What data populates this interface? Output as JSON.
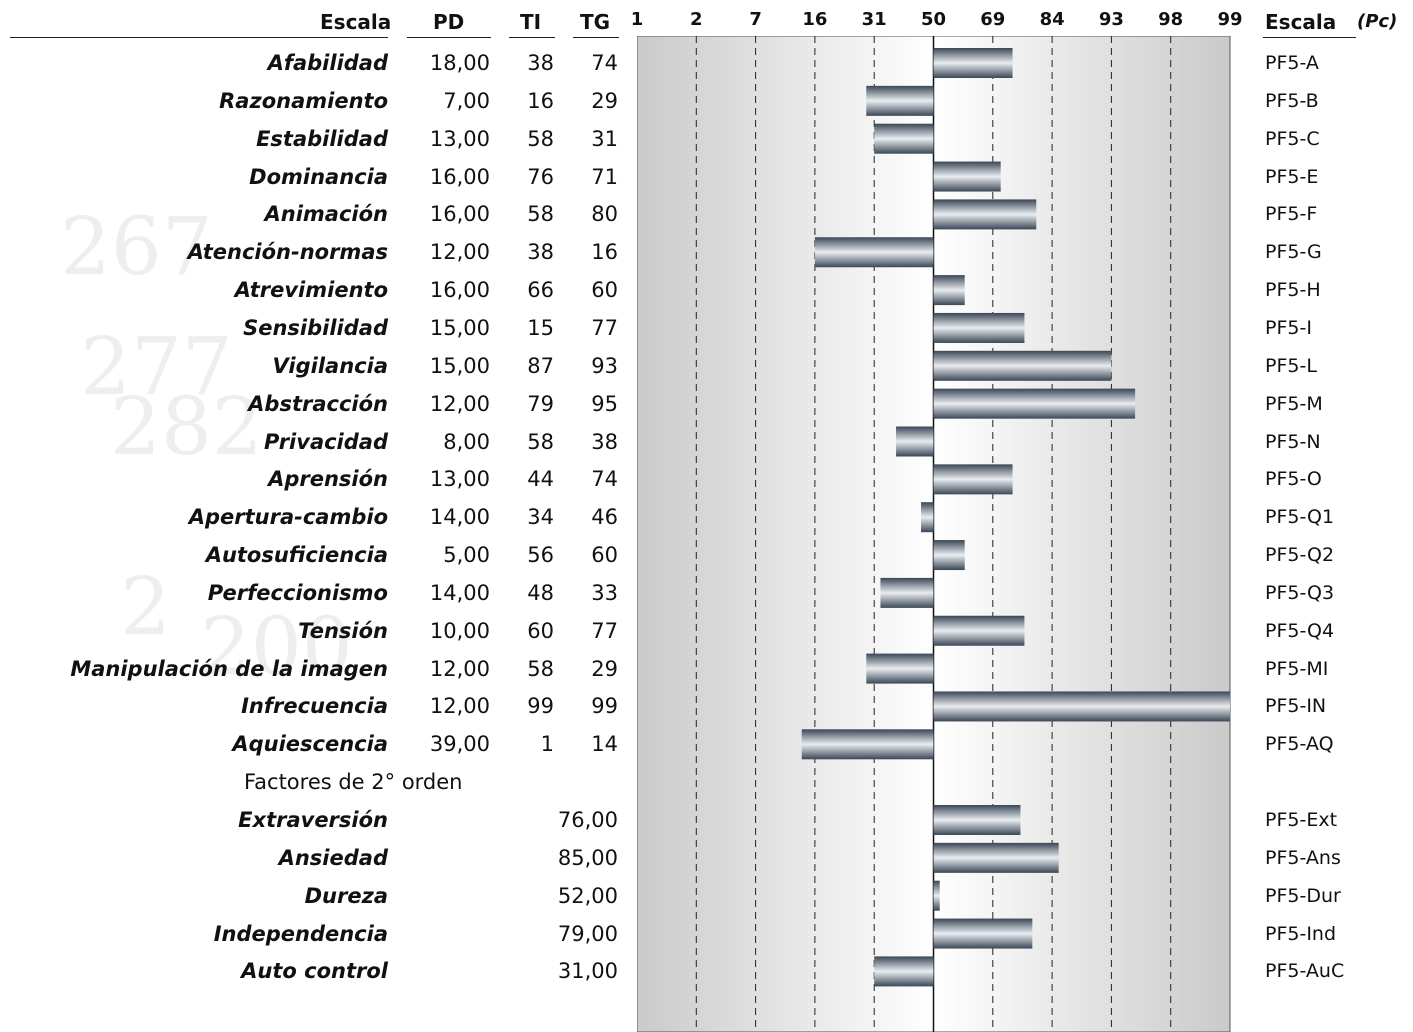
{
  "headers": {
    "escala": "Escala",
    "pd": "PD",
    "ti": "TI",
    "tg": "TG",
    "escala_right": "Escala",
    "pc": "(Pc)"
  },
  "section_label": "Factores de 2° orden",
  "rows": [
    {
      "name": "Afabilidad",
      "pd": "18,00",
      "ti": "38",
      "tg": "74",
      "code": "PF5-A"
    },
    {
      "name": "Razonamiento",
      "pd": "7,00",
      "ti": "16",
      "tg": "29",
      "code": "PF5-B"
    },
    {
      "name": "Estabilidad",
      "pd": "13,00",
      "ti": "58",
      "tg": "31",
      "code": "PF5-C"
    },
    {
      "name": "Dominancia",
      "pd": "16,00",
      "ti": "76",
      "tg": "71",
      "code": "PF5-E"
    },
    {
      "name": "Animación",
      "pd": "16,00",
      "ti": "58",
      "tg": "80",
      "code": "PF5-F"
    },
    {
      "name": "Atención-normas",
      "pd": "12,00",
      "ti": "38",
      "tg": "16",
      "code": "PF5-G"
    },
    {
      "name": "Atrevimiento",
      "pd": "16,00",
      "ti": "66",
      "tg": "60",
      "code": "PF5-H"
    },
    {
      "name": "Sensibilidad",
      "pd": "15,00",
      "ti": "15",
      "tg": "77",
      "code": "PF5-I"
    },
    {
      "name": "Vigilancia",
      "pd": "15,00",
      "ti": "87",
      "tg": "93",
      "code": "PF5-L"
    },
    {
      "name": "Abstracción",
      "pd": "12,00",
      "ti": "79",
      "tg": "95",
      "code": "PF5-M"
    },
    {
      "name": "Privacidad",
      "pd": "8,00",
      "ti": "58",
      "tg": "38",
      "code": "PF5-N"
    },
    {
      "name": "Aprensión",
      "pd": "13,00",
      "ti": "44",
      "tg": "74",
      "code": "PF5-O"
    },
    {
      "name": "Apertura-cambio",
      "pd": "14,00",
      "ti": "34",
      "tg": "46",
      "code": "PF5-Q1"
    },
    {
      "name": "Autosuficiencia",
      "pd": "5,00",
      "ti": "56",
      "tg": "60",
      "code": "PF5-Q2"
    },
    {
      "name": "Perfeccionismo",
      "pd": "14,00",
      "ti": "48",
      "tg": "33",
      "code": "PF5-Q3"
    },
    {
      "name": "Tensión",
      "pd": "10,00",
      "ti": "60",
      "tg": "77",
      "code": "PF5-Q4"
    },
    {
      "name": "Manipulación de la imagen",
      "pd": "12,00",
      "ti": "58",
      "tg": "29",
      "code": "PF5-MI"
    },
    {
      "name": "Infrecuencia",
      "pd": "12,00",
      "ti": "99",
      "tg": "99",
      "code": "PF5-IN"
    },
    {
      "name": "Aquiescencia",
      "pd": "39,00",
      "ti": "1",
      "tg": "14",
      "code": "PF5-AQ"
    }
  ],
  "second_order": [
    {
      "name": "Extraversión",
      "tg": "76,00",
      "code": "PF5-Ext"
    },
    {
      "name": "Ansiedad",
      "tg": "85,00",
      "code": "PF5-Ans"
    },
    {
      "name": "Dureza",
      "tg": "52,00",
      "code": "PF5-Dur"
    },
    {
      "name": "Independencia",
      "tg": "79,00",
      "code": "PF5-Ind"
    },
    {
      "name": "Auto control",
      "tg": "31,00",
      "code": "PF5-AuC"
    }
  ],
  "chart_data": {
    "type": "bar",
    "orientation": "horizontal",
    "baseline": 50,
    "ticks": [
      "1",
      "2",
      "7",
      "16",
      "31",
      "50",
      "69",
      "84",
      "93",
      "98",
      "99"
    ],
    "xlim": [
      1,
      99
    ],
    "grid": "dashed vertical at ticks",
    "categories": [
      "PF5-A",
      "PF5-B",
      "PF5-C",
      "PF5-E",
      "PF5-F",
      "PF5-G",
      "PF5-H",
      "PF5-I",
      "PF5-L",
      "PF5-M",
      "PF5-N",
      "PF5-O",
      "PF5-Q1",
      "PF5-Q2",
      "PF5-Q3",
      "PF5-Q4",
      "PF5-MI",
      "PF5-IN",
      "PF5-AQ",
      "PF5-Ext",
      "PF5-Ans",
      "PF5-Dur",
      "PF5-Ind",
      "PF5-AuC"
    ],
    "values": [
      74,
      29,
      31,
      71,
      80,
      16,
      60,
      77,
      93,
      95,
      38,
      74,
      46,
      60,
      33,
      77,
      29,
      99,
      14,
      76,
      85,
      52,
      79,
      31
    ],
    "colors": {
      "bar_dark": "#3b4756",
      "bar_light": "#e9edf1",
      "band_dark": "#cacacb",
      "band_light": "#ffffff"
    }
  }
}
